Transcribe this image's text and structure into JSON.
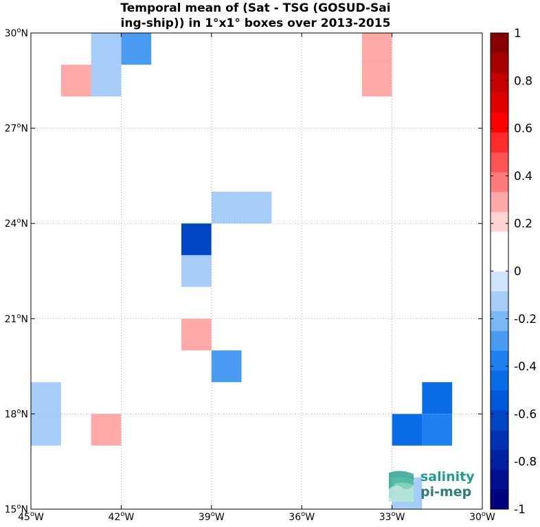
{
  "chart_data": {
    "type": "heatmap",
    "title": [
      "Temporal mean of (Sat - TSG (GOSUD-Sai",
      "ing-ship)) in 1°x1° boxes over 2013-2015"
    ],
    "xlim": [
      -45,
      -30
    ],
    "ylim": [
      15,
      30
    ],
    "x_ticks": [
      {
        "value": -45,
        "deg": "45",
        "hemi": "W"
      },
      {
        "value": -42,
        "deg": "42",
        "hemi": "W"
      },
      {
        "value": -39,
        "deg": "39",
        "hemi": "W"
      },
      {
        "value": -36,
        "deg": "36",
        "hemi": "W"
      },
      {
        "value": -33,
        "deg": "33",
        "hemi": "W"
      },
      {
        "value": -30,
        "deg": "30",
        "hemi": "W"
      }
    ],
    "y_ticks": [
      {
        "value": 15,
        "deg": "15",
        "hemi": "N"
      },
      {
        "value": 18,
        "deg": "18",
        "hemi": "N"
      },
      {
        "value": 21,
        "deg": "21",
        "hemi": "N"
      },
      {
        "value": 24,
        "deg": "24",
        "hemi": "N"
      },
      {
        "value": 27,
        "deg": "27",
        "hemi": "N"
      },
      {
        "value": 30,
        "deg": "30",
        "hemi": "N"
      }
    ],
    "grid": true,
    "cells": [
      {
        "lon": -43,
        "lat": 29,
        "value": -0.15
      },
      {
        "lon": -43,
        "lat": 28,
        "value": -0.15
      },
      {
        "lon": -42,
        "lat": 29,
        "value": -0.3
      },
      {
        "lon": -44,
        "lat": 28,
        "value": 0.25
      },
      {
        "lon": -34,
        "lat": 29,
        "value": 0.25
      },
      {
        "lon": -34,
        "lat": 28,
        "value": 0.25
      },
      {
        "lon": -38,
        "lat": 25,
        "value": 0.15
      },
      {
        "lon": -39,
        "lat": 24,
        "value": -0.15
      },
      {
        "lon": -38,
        "lat": 24,
        "value": -0.15
      },
      {
        "lon": -40,
        "lat": 23,
        "value": -0.65
      },
      {
        "lon": -39,
        "lat": 23,
        "value": 0.15
      },
      {
        "lon": -40,
        "lat": 22,
        "value": -0.15
      },
      {
        "lon": -40,
        "lat": 21,
        "value": 0.15
      },
      {
        "lon": -40,
        "lat": 20,
        "value": 0.25
      },
      {
        "lon": -39,
        "lat": 19,
        "value": -0.3
      },
      {
        "lon": -45,
        "lat": 18,
        "value": -0.15
      },
      {
        "lon": -45,
        "lat": 17,
        "value": -0.15
      },
      {
        "lon": -43,
        "lat": 17,
        "value": 0.25
      },
      {
        "lon": -32,
        "lat": 18,
        "value": -0.5
      },
      {
        "lon": -33,
        "lat": 17,
        "value": -0.5
      },
      {
        "lon": -32,
        "lat": 17,
        "value": -0.35
      },
      {
        "lon": -31,
        "lat": 17,
        "value": 0.15
      },
      {
        "lon": -33,
        "lat": 15,
        "value": -0.15
      }
    ],
    "colorbar": {
      "min": -1,
      "max": 1,
      "colors": [
        "#00007f",
        "#00108f",
        "#0021a1",
        "#0032b3",
        "#0045c6",
        "#0058d8",
        "#0a6be6",
        "#1f80f0",
        "#4a9cf2",
        "#7bb6f5",
        "#a5cdf8",
        "#cfe4fb",
        "#ffffff",
        "#ffffff",
        "#ffd3d3",
        "#ffa8a8",
        "#ff7b7b",
        "#ff5252",
        "#ff2a2a",
        "#ff0000",
        "#e10000",
        "#c60000",
        "#a60000",
        "#880000"
      ],
      "tick_labels": [
        {
          "value": 1,
          "label": "1"
        },
        {
          "value": 0.8,
          "label": "0.8"
        },
        {
          "value": 0.6,
          "label": "0.6"
        },
        {
          "value": 0.4,
          "label": "0.4"
        },
        {
          "value": 0.2,
          "label": "0.2"
        },
        {
          "value": 0,
          "label": "0"
        },
        {
          "value": -0.2,
          "label": "-0.2"
        },
        {
          "value": -0.4,
          "label": "-0.4"
        },
        {
          "value": -0.6,
          "label": "-0.6"
        },
        {
          "value": -0.8,
          "label": "-0.8"
        },
        {
          "value": -1,
          "label": "-1"
        }
      ]
    }
  },
  "logo": {
    "line1": "salinity",
    "line2": "pi-mep"
  }
}
